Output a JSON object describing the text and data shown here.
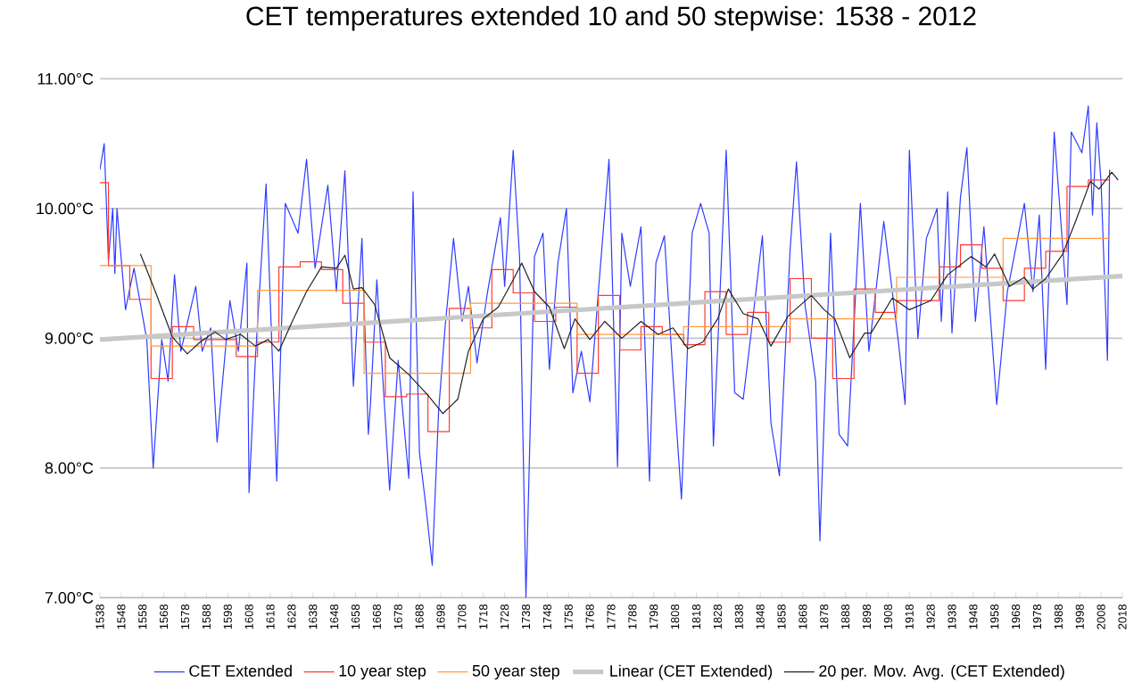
{
  "chart_data": {
    "type": "line",
    "title": "CET temperatures extended 10 and 50 stepwise:  1538 - 2012",
    "xlim": [
      1538,
      2018
    ],
    "xticks": [
      1538,
      1548,
      1558,
      1568,
      1578,
      1588,
      1598,
      1608,
      1618,
      1628,
      1638,
      1648,
      1658,
      1668,
      1678,
      1688,
      1698,
      1708,
      1718,
      1728,
      1738,
      1748,
      1758,
      1768,
      1778,
      1788,
      1798,
      1808,
      1818,
      1828,
      1838,
      1848,
      1858,
      1868,
      1878,
      1888,
      1898,
      1908,
      1918,
      1928,
      1938,
      1948,
      1958,
      1968,
      1978,
      1988,
      1998,
      2008,
      2018
    ],
    "ylim": [
      7,
      11
    ],
    "yticks": [
      {
        "value": 7,
        "label": "7.00°C"
      },
      {
        "value": 8,
        "label": "8.00°C"
      },
      {
        "value": 9,
        "label": "9.00°C"
      },
      {
        "value": 10,
        "label": "10.00°C"
      },
      {
        "value": 11,
        "label": "11.00°C"
      }
    ],
    "grid": "y",
    "legend": "bottom",
    "marker": "none",
    "series": [
      {
        "name": "CET Extended",
        "color": "#2f3cff",
        "x": [
          1538,
          1540,
          1542,
          1544,
          1545,
          1546,
          1550,
          1554,
          1560,
          1563,
          1567,
          1570,
          1573,
          1576,
          1583,
          1586,
          1590,
          1593,
          1599,
          1603,
          1607,
          1608,
          1611,
          1616,
          1621,
          1625,
          1631,
          1635,
          1639,
          1645,
          1649,
          1653,
          1657,
          1661,
          1664,
          1665,
          1668,
          1674,
          1678,
          1683,
          1685,
          1688,
          1691,
          1694,
          1697,
          1700,
          1704,
          1708,
          1711,
          1715,
          1720,
          1726,
          1728,
          1732,
          1735,
          1738,
          1742,
          1746,
          1749,
          1753,
          1757,
          1760,
          1764,
          1768,
          1772,
          1777,
          1781,
          1783,
          1787,
          1792,
          1796,
          1799,
          1803,
          1807,
          1811,
          1816,
          1820,
          1824,
          1826,
          1832,
          1836,
          1840,
          1844,
          1849,
          1853,
          1857,
          1862,
          1865,
          1869,
          1874,
          1876,
          1881,
          1885,
          1889,
          1895,
          1899,
          1900,
          1906,
          1913,
          1916,
          1918,
          1922,
          1926,
          1931,
          1933,
          1936,
          1938,
          1942,
          1945,
          1949,
          1953,
          1959,
          1964,
          1972,
          1976,
          1979,
          1982,
          1986,
          1992,
          1994,
          1999,
          2002,
          2004,
          2006,
          2008,
          2011,
          2012
        ],
        "values": [
          10.3,
          10.5,
          9.6,
          10.0,
          9.5,
          10.0,
          9.22,
          9.54,
          8.99,
          8.0,
          8.99,
          8.67,
          9.49,
          8.9,
          9.4,
          8.9,
          9.08,
          8.2,
          9.29,
          8.9,
          9.58,
          7.81,
          8.85,
          10.19,
          7.9,
          10.04,
          9.81,
          10.38,
          9.54,
          10.18,
          9.36,
          10.29,
          8.63,
          9.77,
          8.26,
          8.49,
          9.45,
          7.83,
          8.83,
          7.92,
          10.13,
          8.12,
          7.71,
          7.25,
          8.44,
          9.08,
          9.77,
          9.13,
          9.4,
          8.81,
          9.36,
          9.93,
          9.4,
          10.45,
          9.63,
          7.0,
          9.63,
          9.81,
          8.76,
          9.58,
          10.0,
          8.58,
          8.9,
          8.51,
          9.36,
          10.38,
          8.01,
          9.81,
          9.4,
          9.86,
          7.9,
          9.58,
          9.79,
          8.72,
          7.76,
          9.81,
          10.04,
          9.81,
          8.17,
          10.45,
          8.58,
          8.53,
          9.08,
          9.79,
          8.35,
          7.94,
          9.68,
          10.36,
          9.26,
          8.67,
          7.44,
          9.81,
          8.26,
          8.17,
          10.04,
          8.9,
          9.04,
          9.9,
          8.95,
          8.49,
          10.45,
          9.0,
          9.77,
          10.0,
          9.13,
          10.13,
          9.04,
          10.09,
          10.47,
          9.13,
          9.86,
          8.49,
          9.36,
          10.04,
          9.36,
          9.95,
          8.76,
          10.59,
          9.26,
          10.59,
          10.43,
          10.79,
          9.95,
          10.66,
          10.2,
          8.83,
          10.3
        ]
      },
      {
        "name": "10 year step",
        "color": "#ff3b30",
        "type": "step",
        "x": [
          1538,
          1542,
          1552,
          1562,
          1572,
          1582,
          1592,
          1602,
          1612,
          1622,
          1632,
          1642,
          1652,
          1662,
          1672,
          1682,
          1692,
          1702,
          1712,
          1722,
          1732,
          1742,
          1752,
          1762,
          1772,
          1782,
          1792,
          1802,
          1812,
          1822,
          1832,
          1842,
          1852,
          1862,
          1872,
          1882,
          1892,
          1902,
          1912,
          1922,
          1932,
          1942,
          1952,
          1962,
          1972,
          1982,
          1992,
          2002,
          2012
        ],
        "values": [
          10.2,
          9.56,
          9.3,
          8.69,
          9.09,
          8.99,
          8.99,
          8.86,
          8.97,
          9.55,
          9.59,
          9.53,
          9.27,
          8.97,
          8.55,
          8.57,
          8.28,
          9.23,
          9.08,
          9.53,
          9.35,
          9.13,
          9.24,
          8.73,
          9.33,
          8.91,
          9.09,
          9.03,
          8.95,
          9.36,
          9.03,
          9.2,
          8.97,
          9.46,
          9.0,
          8.69,
          9.38,
          9.2,
          9.29,
          9.29,
          9.55,
          9.72,
          9.54,
          9.29,
          9.54,
          9.67,
          10.17,
          10.22,
          10.22
        ]
      },
      {
        "name": "50 year step",
        "color": "#ff9a40",
        "type": "step",
        "x": [
          1538,
          1562,
          1612,
          1662,
          1712,
          1762,
          1812,
          1862,
          1912,
          1962,
          2012
        ],
        "values": [
          9.56,
          8.94,
          9.37,
          8.73,
          9.27,
          9.03,
          9.09,
          9.15,
          9.47,
          9.77,
          9.77
        ]
      },
      {
        "name": "Linear (CET Extended)",
        "color": "#c8c8c8",
        "x": [
          1538,
          2018
        ],
        "values": [
          8.99,
          9.48
        ]
      },
      {
        "name": "20 per. Mov. Avg. (CET Extended)",
        "color": "#222222",
        "x": [
          1557,
          1564,
          1572,
          1579,
          1585,
          1592,
          1597,
          1604,
          1611,
          1617,
          1622,
          1628,
          1635,
          1642,
          1649,
          1653,
          1657,
          1661,
          1667,
          1674,
          1683,
          1692,
          1699,
          1706,
          1711,
          1718,
          1725,
          1732,
          1736,
          1742,
          1749,
          1756,
          1761,
          1768,
          1775,
          1783,
          1792,
          1800,
          1807,
          1814,
          1821,
          1828,
          1833,
          1840,
          1847,
          1853,
          1861,
          1872,
          1878,
          1883,
          1890,
          1897,
          1900,
          1910,
          1918,
          1928,
          1936,
          1947,
          1954,
          1958,
          1965,
          1972,
          1976,
          1982,
          1990,
          1996,
          2003,
          2007,
          2013,
          2016
        ],
        "values": [
          9.65,
          9.36,
          9.01,
          8.88,
          8.97,
          9.05,
          8.99,
          9.03,
          8.94,
          8.99,
          8.9,
          9.12,
          9.36,
          9.55,
          9.54,
          9.64,
          9.38,
          9.39,
          9.26,
          8.85,
          8.72,
          8.56,
          8.42,
          8.53,
          8.9,
          9.15,
          9.24,
          9.45,
          9.58,
          9.36,
          9.24,
          8.92,
          9.15,
          8.99,
          9.13,
          9.0,
          9.13,
          9.03,
          9.08,
          8.92,
          8.97,
          9.15,
          9.38,
          9.19,
          9.15,
          8.94,
          9.17,
          9.33,
          9.22,
          9.15,
          8.85,
          9.04,
          9.04,
          9.31,
          9.22,
          9.29,
          9.49,
          9.63,
          9.55,
          9.65,
          9.4,
          9.47,
          9.38,
          9.46,
          9.65,
          9.9,
          10.21,
          10.15,
          10.28,
          10.22
        ]
      }
    ]
  }
}
